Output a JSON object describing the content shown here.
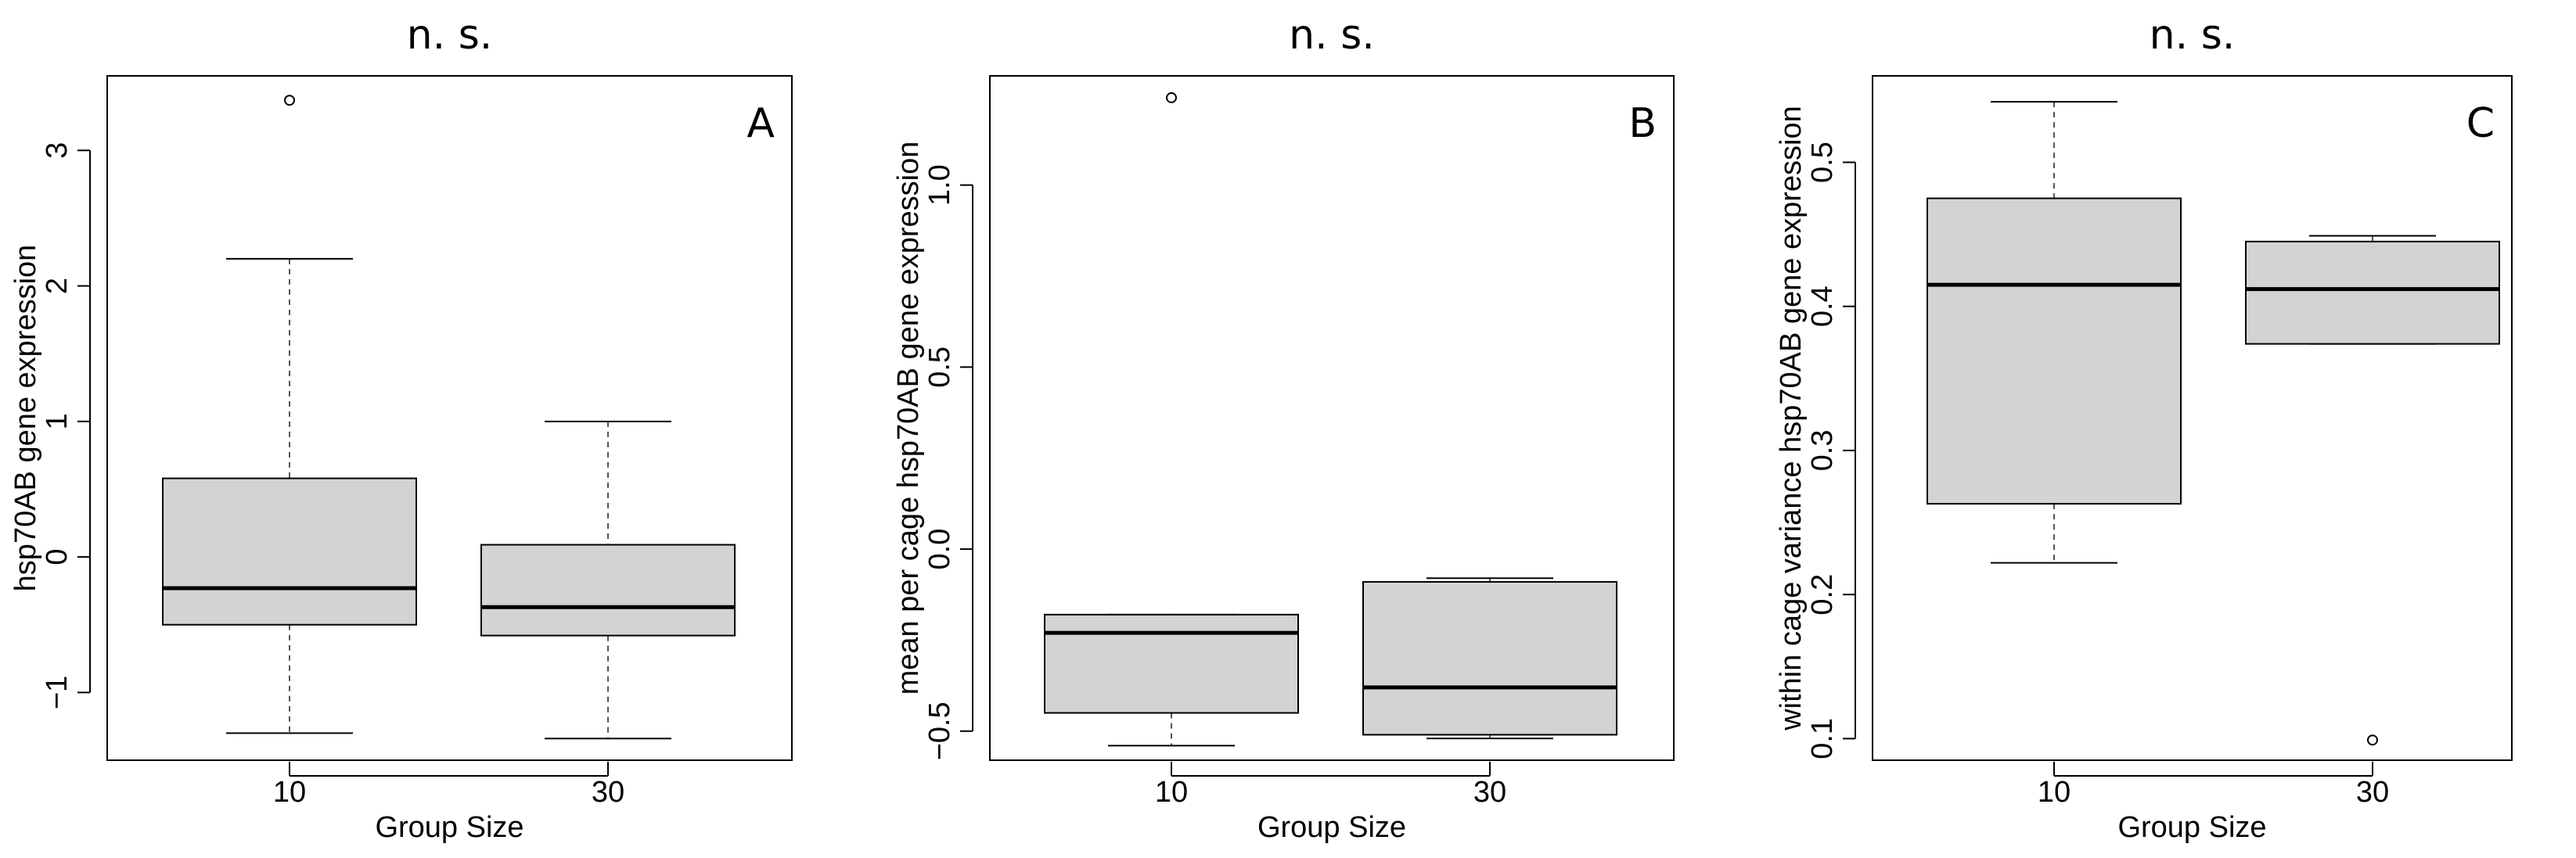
{
  "chart_data": [
    {
      "type": "box",
      "title": "n. s.",
      "panel": "A",
      "xlabel": "Group Size",
      "ylabel": "hsp70AB gene expression",
      "ylim": [
        -1.5,
        3.55
      ],
      "yticks": [
        -1,
        0,
        1,
        2,
        3
      ],
      "ytick_labels": [
        "−1",
        "0",
        "1",
        "2",
        "3"
      ],
      "categories": [
        "10",
        "30"
      ],
      "boxes": [
        {
          "whisker_low": -1.3,
          "q1": -0.5,
          "median": -0.23,
          "q3": 0.58,
          "whisker_high": 2.2,
          "outliers": [
            3.37
          ]
        },
        {
          "whisker_low": -1.34,
          "q1": -0.58,
          "median": -0.37,
          "q3": 0.09,
          "whisker_high": 1.0,
          "outliers": []
        }
      ]
    },
    {
      "type": "box",
      "title": "n. s.",
      "panel": "B",
      "xlabel": "Group Size",
      "ylabel": "mean per cage hsp70AB gene expression",
      "ylim": [
        -0.58,
        1.3
      ],
      "yticks": [
        -0.5,
        0.0,
        0.5,
        1.0
      ],
      "ytick_labels": [
        "−0.5",
        "0.0",
        "0.5",
        "1.0"
      ],
      "categories": [
        "10",
        "30"
      ],
      "boxes": [
        {
          "whisker_low": -0.54,
          "q1": -0.45,
          "median": -0.23,
          "q3": -0.18,
          "whisker_high": -0.18,
          "outliers": [
            1.24
          ]
        },
        {
          "whisker_low": -0.52,
          "q1": -0.51,
          "median": -0.38,
          "q3": -0.09,
          "whisker_high": -0.08,
          "outliers": []
        }
      ]
    },
    {
      "type": "box",
      "title": "n. s.",
      "panel": "C",
      "xlabel": "Group Size",
      "ylabel": "within cage variance hsp70AB gene expression",
      "ylim": [
        0.085,
        0.56
      ],
      "yticks": [
        0.1,
        0.2,
        0.3,
        0.4,
        0.5
      ],
      "ytick_labels": [
        "0.1",
        "0.2",
        "0.3",
        "0.4",
        "0.5"
      ],
      "categories": [
        "10",
        "30"
      ],
      "boxes": [
        {
          "whisker_low": 0.222,
          "q1": 0.263,
          "median": 0.415,
          "q3": 0.475,
          "whisker_high": 0.542,
          "outliers": []
        },
        {
          "whisker_low": 0.374,
          "q1": 0.374,
          "median": 0.412,
          "q3": 0.445,
          "whisker_high": 0.449,
          "outliers": [
            0.099
          ]
        }
      ]
    }
  ],
  "style": {
    "box_fill": "#d3d3d3",
    "line_color": "#000000",
    "whisker_color": "#555555"
  }
}
